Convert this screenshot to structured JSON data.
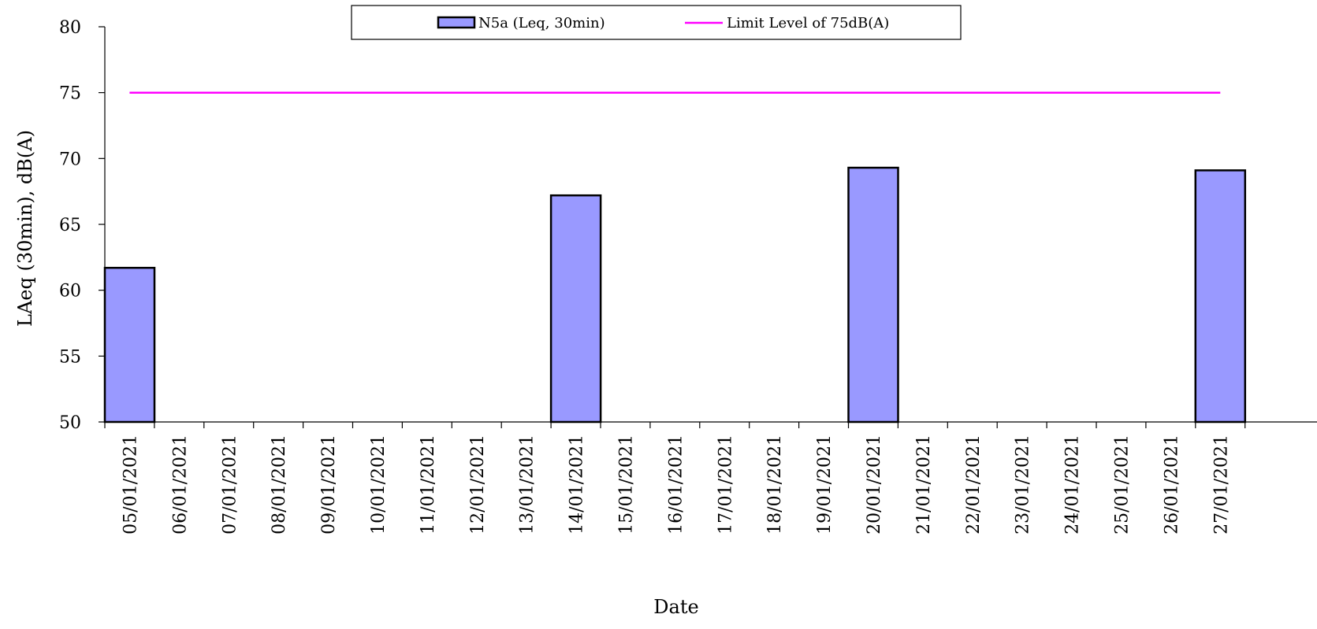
{
  "chart_data": {
    "type": "bar",
    "title": "",
    "xlabel": "Date",
    "ylabel": "LAeq (30min), dB(A)",
    "ylim": [
      50,
      80
    ],
    "yticks": [
      50,
      55,
      60,
      65,
      70,
      75,
      80
    ],
    "grid": false,
    "legend_position": "top-center",
    "categories": [
      "05/01/2021",
      "06/01/2021",
      "07/01/2021",
      "08/01/2021",
      "09/01/2021",
      "10/01/2021",
      "11/01/2021",
      "12/01/2021",
      "13/01/2021",
      "14/01/2021",
      "15/01/2021",
      "16/01/2021",
      "17/01/2021",
      "18/01/2021",
      "19/01/2021",
      "20/01/2021",
      "21/01/2021",
      "22/01/2021",
      "23/01/2021",
      "24/01/2021",
      "25/01/2021",
      "26/01/2021",
      "27/01/2021"
    ],
    "series": [
      {
        "name": "N5a (Leq, 30min)",
        "kind": "bar",
        "color": "#9999ff",
        "values": [
          61.7,
          null,
          null,
          null,
          null,
          null,
          null,
          null,
          null,
          67.2,
          null,
          null,
          null,
          null,
          null,
          69.3,
          null,
          null,
          null,
          null,
          null,
          null,
          69.1
        ]
      },
      {
        "name": "Limit Level of 75dB(A)",
        "kind": "line",
        "color": "#ff00ff",
        "values": [
          75,
          75,
          75,
          75,
          75,
          75,
          75,
          75,
          75,
          75,
          75,
          75,
          75,
          75,
          75,
          75,
          75,
          75,
          75,
          75,
          75,
          75,
          75
        ]
      }
    ]
  }
}
